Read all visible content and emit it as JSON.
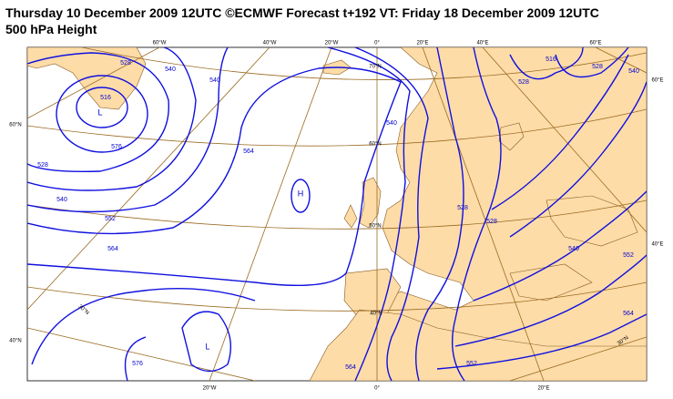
{
  "header": {
    "title": "Thursday 10 December 2009 12UTC ©ECMWF Forecast t+192 VT: Friday 18 December 2009 12UTC",
    "subtitle": "500 hPa Height"
  },
  "map": {
    "graticule_labels": [
      "60°W",
      "40°W",
      "20°W",
      "0°",
      "20°E",
      "40°E",
      "60°E",
      "20°W",
      "0°",
      "20°E",
      "60°N",
      "40°N",
      "60°E",
      "40°E",
      "70°N",
      "60°N",
      "50°N",
      "40°N",
      "30°N",
      "30°N"
    ],
    "contour_labels": [
      "528",
      "516",
      "540",
      "576",
      "528",
      "540",
      "552",
      "564",
      "564",
      "576",
      "564",
      "552",
      "564",
      "552",
      "540",
      "528",
      "528",
      "540",
      "528",
      "516",
      "528",
      "540",
      "540"
    ],
    "pressure_centers": [
      "L",
      "H",
      "L"
    ]
  }
}
